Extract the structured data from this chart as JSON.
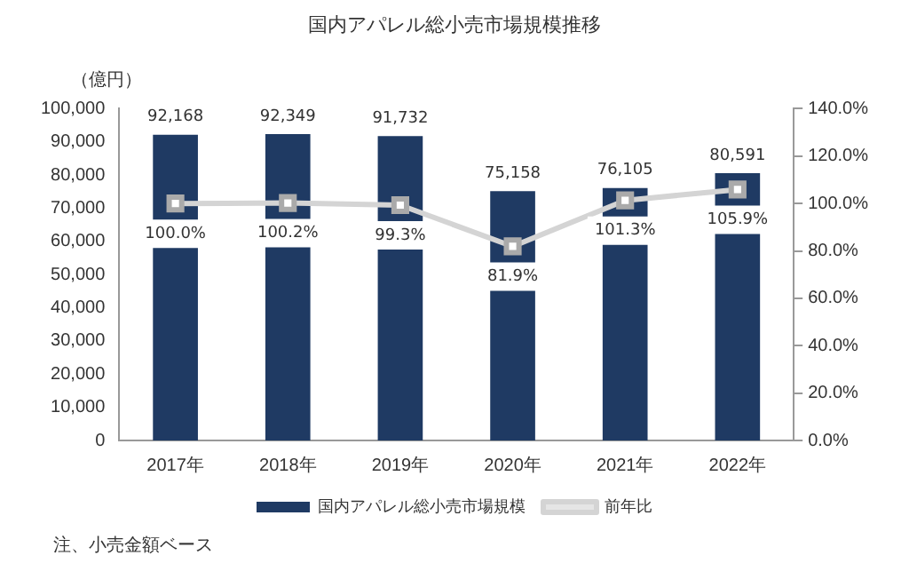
{
  "chart_data": {
    "type": "bar",
    "title": "国内アパレル総小売市場規模推移",
    "ylabel": "（億円）",
    "categories": [
      "2017年",
      "2018年",
      "2019年",
      "2020年",
      "2021年",
      "2022年"
    ],
    "series": [
      {
        "name": "国内アパレル総小売市場規模",
        "color": "#1f3a63",
        "values": [
          92168,
          92349,
          91732,
          75158,
          76105,
          80591
        ],
        "value_labels": [
          "92,168",
          "92,349",
          "91,732",
          "75,158",
          "76,105",
          "80,591"
        ]
      },
      {
        "name": "前年比",
        "type": "line",
        "axis": "y2",
        "color": "#d4d4d4",
        "marker": "square",
        "values": [
          100.0,
          100.2,
          99.3,
          81.9,
          101.3,
          105.9
        ],
        "value_labels": [
          "100.0%",
          "100.2%",
          "99.3%",
          "81.9%",
          "101.3%",
          "105.9%"
        ]
      }
    ],
    "ylim": [
      0,
      100000
    ],
    "yticks": [
      0,
      {
        "value": 10000,
        "label": "10,000"
      },
      {
        "value": 20000,
        "label": "20,000"
      },
      {
        "value": 30000,
        "label": "30,000"
      },
      {
        "value": 40000,
        "label": "40,000"
      },
      {
        "value": 50000,
        "label": "50,000"
      },
      {
        "value": 60000,
        "label": "60,000"
      },
      {
        "value": 70000,
        "label": "70,000"
      },
      {
        "value": 80000,
        "label": "80,000"
      },
      {
        "value": 90000,
        "label": "90,000"
      },
      {
        "value": 100000,
        "label": "100,000"
      }
    ],
    "y2lim": [
      0,
      140
    ],
    "y2ticks": [
      {
        "value": 0,
        "label": "0.0%"
      },
      {
        "value": 20,
        "label": "20.0%"
      },
      {
        "value": 40,
        "label": "40.0%"
      },
      {
        "value": 60,
        "label": "60.0%"
      },
      {
        "value": 80,
        "label": "80.0%"
      },
      {
        "value": 100,
        "label": "100.0%"
      },
      {
        "value": 120,
        "label": "120.0%"
      },
      {
        "value": 140,
        "label": "140.0%"
      }
    ],
    "grid": false,
    "legend": "bottom",
    "annotations": [
      "注、小売金額ベース"
    ]
  }
}
